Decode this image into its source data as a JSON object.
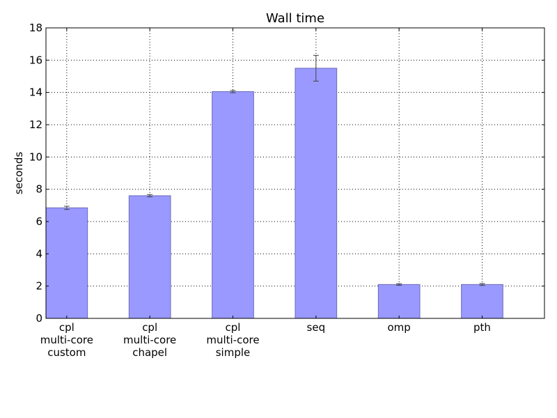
{
  "chart_data": {
    "type": "bar",
    "title": "Wall time",
    "xlabel": "",
    "ylabel": "seconds",
    "ylim": [
      0,
      18
    ],
    "yticks": [
      0,
      2,
      4,
      6,
      8,
      10,
      12,
      14,
      16,
      18
    ],
    "categories": [
      [
        "cpl",
        "multi-core",
        "custom"
      ],
      [
        "cpl",
        "multi-core",
        "chapel"
      ],
      [
        "cpl",
        "multi-core",
        "simple"
      ],
      [
        "seq"
      ],
      [
        "omp"
      ],
      [
        "pth"
      ]
    ],
    "values": [
      6.85,
      7.6,
      14.05,
      15.5,
      2.1,
      2.1
    ],
    "errors": [
      0.1,
      0.07,
      0.07,
      0.8,
      0.05,
      0.06
    ],
    "grid": true,
    "bar_color": "#9999ff",
    "bar_edge_color": "#6b6bb8"
  }
}
